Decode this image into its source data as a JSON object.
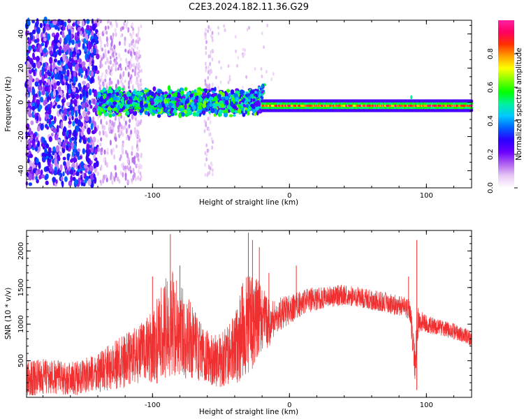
{
  "title": "C2E3.2024.182.11.36.G29",
  "chart_data": [
    {
      "type": "heatmap",
      "xlabel": "Height of straight line (km)",
      "ylabel": "Frequency (Hz)",
      "xlim": [
        -192,
        133
      ],
      "ylim": [
        -50,
        48
      ],
      "x_ticks": [
        -100,
        0,
        100
      ],
      "y_ticks": [
        -40,
        -20,
        0,
        20,
        40
      ],
      "colorbar": {
        "label": "Normalized spectral amplitude",
        "range": [
          0,
          1
        ],
        "ticks": [
          0.0,
          0.2,
          0.4,
          0.6,
          0.8
        ],
        "colormap": [
          "#ffffff",
          "#e8c8f5",
          "#b060f0",
          "#6a00ff",
          "#2a00ff",
          "#0060ff",
          "#00c8ff",
          "#00f0a0",
          "#00ff00",
          "#80ff00",
          "#ffff00",
          "#ffa000",
          "#ff3000",
          "#ff0060",
          "#ff20a0"
        ]
      },
      "features": [
        {
          "x_range": [
            -192,
            -140
          ],
          "freq_spread": 48,
          "amplitude": 0.3,
          "note": "broadband scattered noise"
        },
        {
          "x_range": [
            -140,
            -110
          ],
          "freq_spread": 48,
          "amplitude": 0.1,
          "note": "faint scattered noise"
        },
        {
          "x_range": [
            -140,
            -20
          ],
          "center_freq": 0,
          "band_half_width": 6,
          "amplitude": 0.45,
          "note": "noisy band"
        },
        {
          "x_range": [
            -35,
            -18
          ],
          "center_freq": 8,
          "band_half_width": 3,
          "amplitude": 0.35,
          "note": "upward drift"
        },
        {
          "x_range": [
            -20,
            133
          ],
          "center_freq": -2,
          "band_half_width": 2,
          "amplitude": 0.95,
          "note": "narrow peak line"
        }
      ],
      "grid": false
    },
    {
      "type": "line",
      "xlabel": "Height of straight line (km)",
      "ylabel": "SNR (10 * v/v)",
      "xlim": [
        -192,
        133
      ],
      "ylim": [
        0,
        2280
      ],
      "x_ticks": [
        -100,
        0,
        100
      ],
      "y_ticks": [
        500,
        1000,
        1500,
        2000
      ],
      "color": "#f03030",
      "x": [
        -192,
        -180,
        -170,
        -160,
        -150,
        -140,
        -130,
        -120,
        -110,
        -100,
        -95,
        -90,
        -85,
        -80,
        -75,
        -70,
        -65,
        -60,
        -55,
        -50,
        -45,
        -40,
        -35,
        -30,
        -25,
        -20,
        -15,
        -10,
        -5,
        0,
        10,
        20,
        30,
        40,
        50,
        60,
        70,
        80,
        88,
        92,
        93,
        95,
        100,
        110,
        120,
        133
      ],
      "values": [
        250,
        280,
        270,
        260,
        280,
        330,
        420,
        500,
        600,
        680,
        800,
        950,
        1000,
        900,
        850,
        700,
        600,
        550,
        500,
        520,
        560,
        650,
        900,
        1000,
        1050,
        1100,
        1000,
        1100,
        1150,
        1200,
        1300,
        1350,
        1380,
        1400,
        1370,
        1330,
        1300,
        1250,
        1200,
        400,
        950,
        1050,
        1000,
        950,
        900,
        800
      ],
      "spread": [
        250,
        250,
        240,
        230,
        250,
        280,
        320,
        380,
        420,
        500,
        650,
        700,
        750,
        700,
        600,
        500,
        450,
        400,
        350,
        380,
        430,
        500,
        650,
        700,
        600,
        450,
        320,
        250,
        220,
        200,
        180,
        160,
        150,
        140,
        140,
        140,
        140,
        140,
        150,
        300,
        300,
        150,
        120,
        110,
        110,
        110
      ],
      "peaks": [
        [
          -87,
          2230
        ],
        [
          -80,
          1800
        ],
        [
          -100,
          1650
        ],
        [
          -30,
          2250
        ],
        [
          -27,
          2150
        ],
        [
          -22,
          2050
        ],
        [
          -15,
          1700
        ],
        [
          5,
          1800
        ],
        [
          87,
          1650
        ],
        [
          93,
          2150
        ],
        [
          93,
          100
        ]
      ],
      "grid": false
    }
  ]
}
